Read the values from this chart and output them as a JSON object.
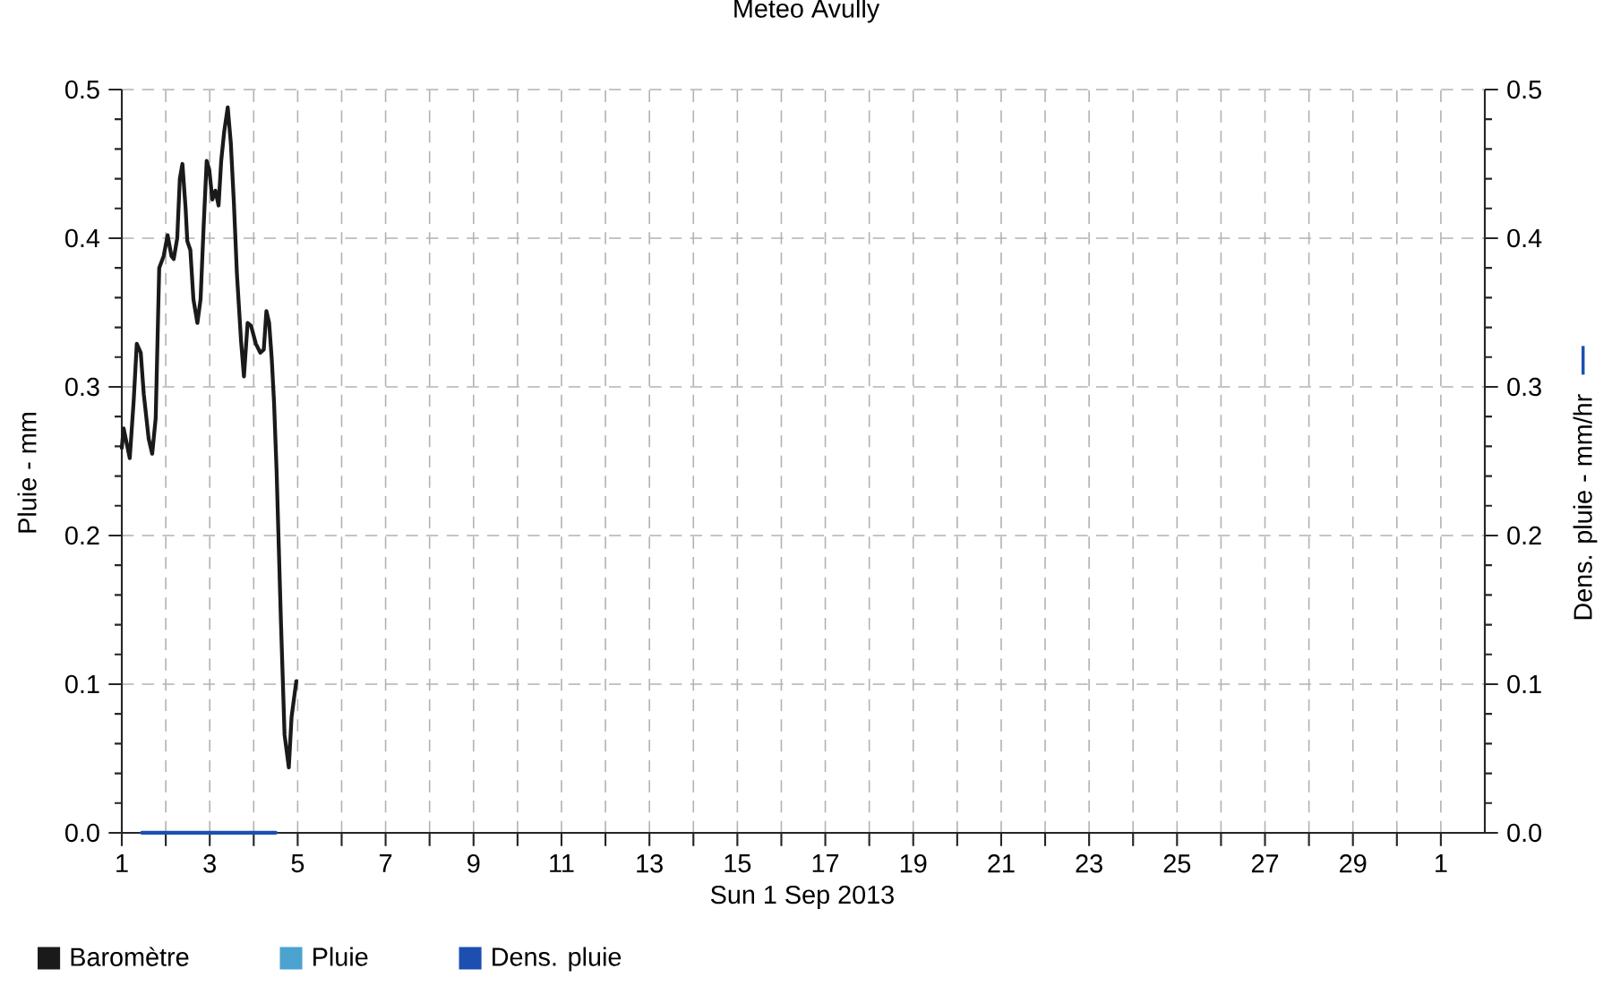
{
  "chart_data": {
    "type": "line",
    "title": "Meteo Avully",
    "xlabel": "Sun 1 Sep 2013",
    "ylabel": "Pluie - mm",
    "y2label": "Dens. pluie - mm/hr",
    "xlim": [
      "2013-09-01",
      "2013-10-02"
    ],
    "xticks": [
      {
        "value": "2013-09-01",
        "label": "1"
      },
      {
        "value": "2013-09-02",
        "label": null
      },
      {
        "value": "2013-09-03",
        "label": "3"
      },
      {
        "value": "2013-09-04",
        "label": null
      },
      {
        "value": "2013-09-05",
        "label": "5"
      },
      {
        "value": "2013-09-06",
        "label": null
      },
      {
        "value": "2013-09-07",
        "label": "7"
      },
      {
        "value": "2013-09-08",
        "label": null
      },
      {
        "value": "2013-09-09",
        "label": "9"
      },
      {
        "value": "2013-09-10",
        "label": null
      },
      {
        "value": "2013-09-11",
        "label": "11"
      },
      {
        "value": "2013-09-12",
        "label": null
      },
      {
        "value": "2013-09-13",
        "label": "13"
      },
      {
        "value": "2013-09-14",
        "label": null
      },
      {
        "value": "2013-09-15",
        "label": "15"
      },
      {
        "value": "2013-09-16",
        "label": null
      },
      {
        "value": "2013-09-17",
        "label": "17"
      },
      {
        "value": "2013-09-18",
        "label": null
      },
      {
        "value": "2013-09-19",
        "label": "19"
      },
      {
        "value": "2013-09-20",
        "label": null
      },
      {
        "value": "2013-09-21",
        "label": "21"
      },
      {
        "value": "2013-09-22",
        "label": null
      },
      {
        "value": "2013-09-23",
        "label": "23"
      },
      {
        "value": "2013-09-24",
        "label": null
      },
      {
        "value": "2013-09-25",
        "label": "25"
      },
      {
        "value": "2013-09-26",
        "label": null
      },
      {
        "value": "2013-09-27",
        "label": "27"
      },
      {
        "value": "2013-09-28",
        "label": null
      },
      {
        "value": "2013-09-29",
        "label": "29"
      },
      {
        "value": "2013-09-30",
        "label": null
      },
      {
        "value": "2013-10-01",
        "label": "1"
      }
    ],
    "ylim": [
      0,
      0.5
    ],
    "yticks": [
      {
        "value": 0,
        "label": "0.0"
      },
      {
        "value": 0.02,
        "label": null
      },
      {
        "value": 0.04,
        "label": null
      },
      {
        "value": 0.06,
        "label": null
      },
      {
        "value": 0.08,
        "label": null
      },
      0.1,
      {
        "value": 0.12,
        "label": null
      },
      {
        "value": 0.14,
        "label": null
      },
      {
        "value": 0.16,
        "label": null
      },
      {
        "value": 0.18,
        "label": null
      },
      0.2,
      {
        "value": 0.22,
        "label": null
      },
      {
        "value": 0.24,
        "label": null
      },
      {
        "value": 0.26,
        "label": null
      },
      {
        "value": 0.28,
        "label": null
      },
      0.3,
      {
        "value": 0.32,
        "label": null
      },
      {
        "value": 0.34,
        "label": null
      },
      {
        "value": 0.36,
        "label": null
      },
      {
        "value": 0.38,
        "label": null
      },
      0.4,
      {
        "value": 0.42,
        "label": null
      },
      {
        "value": 0.44,
        "label": null
      },
      {
        "value": 0.46,
        "label": null
      },
      {
        "value": 0.48,
        "label": null
      },
      0.5
    ],
    "y2lim": [
      0,
      0.5
    ],
    "y2ticks": [
      {
        "value": 0,
        "label": "0.0"
      },
      {
        "value": 0.02,
        "label": null
      },
      {
        "value": 0.04,
        "label": null
      },
      {
        "value": 0.06,
        "label": null
      },
      {
        "value": 0.08,
        "label": null
      },
      0.1,
      {
        "value": 0.12,
        "label": null
      },
      {
        "value": 0.14,
        "label": null
      },
      {
        "value": 0.16,
        "label": null
      },
      {
        "value": 0.18,
        "label": null
      },
      0.2,
      {
        "value": 0.22,
        "label": null
      },
      {
        "value": 0.24,
        "label": null
      },
      {
        "value": 0.26,
        "label": null
      },
      {
        "value": 0.28,
        "label": null
      },
      0.3,
      {
        "value": 0.32,
        "label": null
      },
      {
        "value": 0.34,
        "label": null
      },
      {
        "value": 0.36,
        "label": null
      },
      {
        "value": 0.38,
        "label": null
      },
      0.4,
      {
        "value": 0.42,
        "label": null
      },
      {
        "value": 0.44,
        "label": null
      },
      {
        "value": 0.46,
        "label": null
      },
      {
        "value": 0.48,
        "label": null
      },
      0.5
    ],
    "grid": true,
    "legend": "bottom",
    "series": [
      {
        "name": "Baromètre",
        "color": "#1a1a1a",
        "x": [
          "2013-09-01T00:00",
          "2013-09-01T01:00",
          "2013-09-01T04:20",
          "2013-09-01T06:30",
          "2013-09-01T08:10",
          "2013-09-01T10:20",
          "2013-09-01T12:00",
          "2013-09-01T14:40",
          "2013-09-01T16:35",
          "2013-09-01T18:30",
          "2013-09-01T20:25",
          "2013-09-01T22:50",
          "2013-09-02T01:00",
          "2013-09-02T03:05",
          "2013-09-02T04:20",
          "2013-09-02T06:15",
          "2013-09-02T07:40",
          "2013-09-02T09:05",
          "2013-09-02T10:50",
          "2013-09-02T11:45",
          "2013-09-02T13:25",
          "2013-09-02T15:05",
          "2013-09-02T17:15",
          "2013-09-02T19:00",
          "2013-09-02T20:40",
          "2013-09-02T22:20",
          "2013-09-02T23:45",
          "2013-09-03T01:25",
          "2013-09-03T03:05",
          "2013-09-03T04:50",
          "2013-09-03T06:15",
          "2013-09-03T07:55",
          "2013-09-03T09:50",
          "2013-09-03T11:30",
          "2013-09-03T13:10",
          "2013-09-03T14:50",
          "2013-09-03T17:05",
          "2013-09-03T18:40",
          "2013-09-03T20:40",
          "2013-09-03T22:35",
          "2013-09-04T01:10",
          "2013-09-04T03:35",
          "2013-09-04T05:30",
          "2013-09-04T06:55",
          "2013-09-04T08:25",
          "2013-09-04T09:50",
          "2013-09-04T11:05",
          "2013-09-04T12:30",
          "2013-09-04T14:50",
          "2013-09-04T16:50",
          "2013-09-04T19:10",
          "2013-09-04T20:40",
          "2013-09-04T23:15"
        ],
        "values": [
          0.259,
          0.272,
          0.252,
          0.291,
          0.329,
          0.323,
          0.295,
          0.265,
          0.255,
          0.279,
          0.38,
          0.388,
          0.402,
          0.388,
          0.386,
          0.4,
          0.44,
          0.45,
          0.42,
          0.398,
          0.392,
          0.359,
          0.343,
          0.359,
          0.408,
          0.452,
          0.446,
          0.426,
          0.432,
          0.422,
          0.452,
          0.472,
          0.488,
          0.464,
          0.424,
          0.376,
          0.331,
          0.307,
          0.343,
          0.341,
          0.329,
          0.323,
          0.325,
          0.351,
          0.343,
          0.319,
          0.29,
          0.243,
          0.143,
          0.066,
          0.044,
          0.078,
          0.102
        ]
      },
      {
        "name": "Pluie",
        "type": "bar",
        "color": "#4ba3cf"
      },
      {
        "name": "Dens. pluie",
        "type": "line",
        "axis": "y2",
        "color": "#1c4fb0",
        "x": [
          "2013-09-01T11:00",
          "2013-09-04T12:00"
        ],
        "values": [
          0,
          0
        ]
      }
    ]
  }
}
